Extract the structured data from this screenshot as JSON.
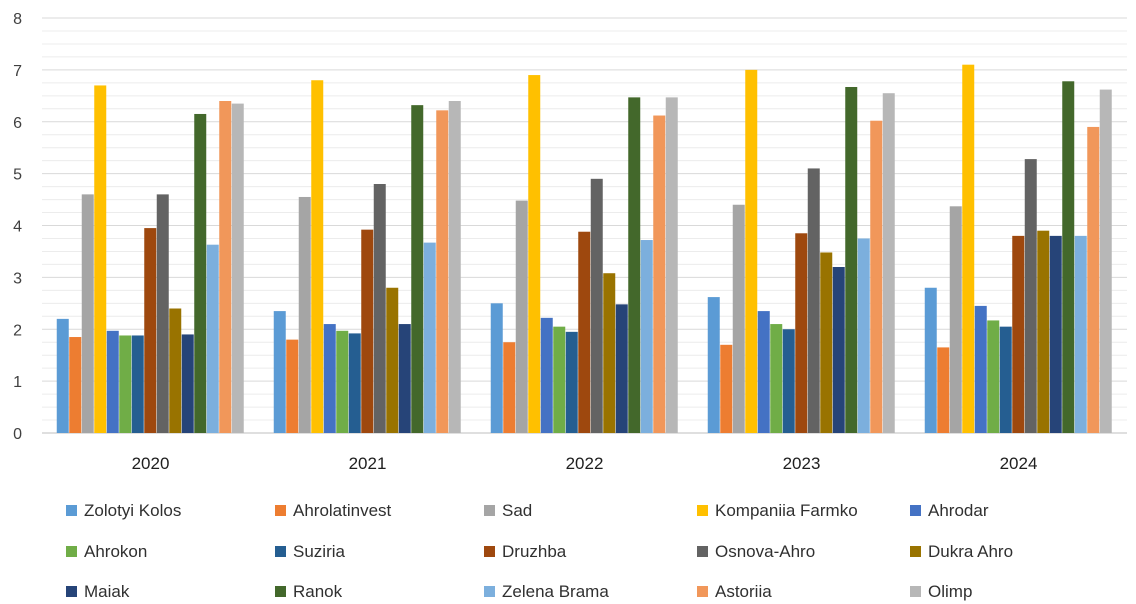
{
  "chart_data": {
    "type": "bar",
    "categories": [
      "2020",
      "2021",
      "2022",
      "2023",
      "2024"
    ],
    "ylim": [
      0,
      8
    ],
    "yticks": [
      "0",
      "1",
      "2",
      "3",
      "4",
      "5",
      "6",
      "7",
      "8"
    ],
    "grid": true,
    "legend_position": "bottom",
    "series": [
      {
        "name": "Zolotyi Kolos",
        "color": "#5B9BD5",
        "values": [
          2.2,
          2.35,
          2.5,
          2.62,
          2.8
        ]
      },
      {
        "name": "Ahrolatinvest",
        "color": "#ED7D31",
        "values": [
          1.85,
          1.8,
          1.75,
          1.7,
          1.65
        ]
      },
      {
        "name": "Sad",
        "color": "#A5A5A5",
        "values": [
          4.6,
          4.55,
          4.48,
          4.4,
          4.37
        ]
      },
      {
        "name": "Kompaniia Farmko",
        "color": "#FFC000",
        "values": [
          6.7,
          6.8,
          6.9,
          7.0,
          7.1
        ]
      },
      {
        "name": "Ahrodar",
        "color": "#4472C4",
        "values": [
          1.97,
          2.1,
          2.22,
          2.35,
          2.45
        ]
      },
      {
        "name": "Ahrokon",
        "color": "#70AD47",
        "values": [
          1.88,
          1.97,
          2.05,
          2.1,
          2.17
        ]
      },
      {
        "name": "Suziria",
        "color": "#255E91",
        "values": [
          1.88,
          1.92,
          1.95,
          2.0,
          2.05
        ]
      },
      {
        "name": "Druzhba",
        "color": "#9E480E",
        "values": [
          3.95,
          3.92,
          3.88,
          3.85,
          3.8
        ]
      },
      {
        "name": "Osnova-Ahro",
        "color": "#636363",
        "values": [
          4.6,
          4.8,
          4.9,
          5.1,
          5.28
        ]
      },
      {
        "name": "Dukra Ahro",
        "color": "#997300",
        "values": [
          2.4,
          2.8,
          3.08,
          3.48,
          3.9
        ]
      },
      {
        "name": "Maiak",
        "color": "#264478",
        "values": [
          1.9,
          2.1,
          2.48,
          3.2,
          3.8
        ]
      },
      {
        "name": "Ranok",
        "color": "#43682B",
        "values": [
          6.15,
          6.32,
          6.47,
          6.67,
          6.78
        ]
      },
      {
        "name": "Zelena Brama",
        "color": "#7CAFDD",
        "values": [
          3.63,
          3.67,
          3.72,
          3.75,
          3.8
        ]
      },
      {
        "name": "Astoriia",
        "color": "#F1975A",
        "values": [
          6.4,
          6.22,
          6.12,
          6.02,
          5.9
        ]
      },
      {
        "name": "Olimp",
        "color": "#B7B7B7",
        "values": [
          6.35,
          6.4,
          6.47,
          6.55,
          6.62
        ]
      }
    ]
  }
}
